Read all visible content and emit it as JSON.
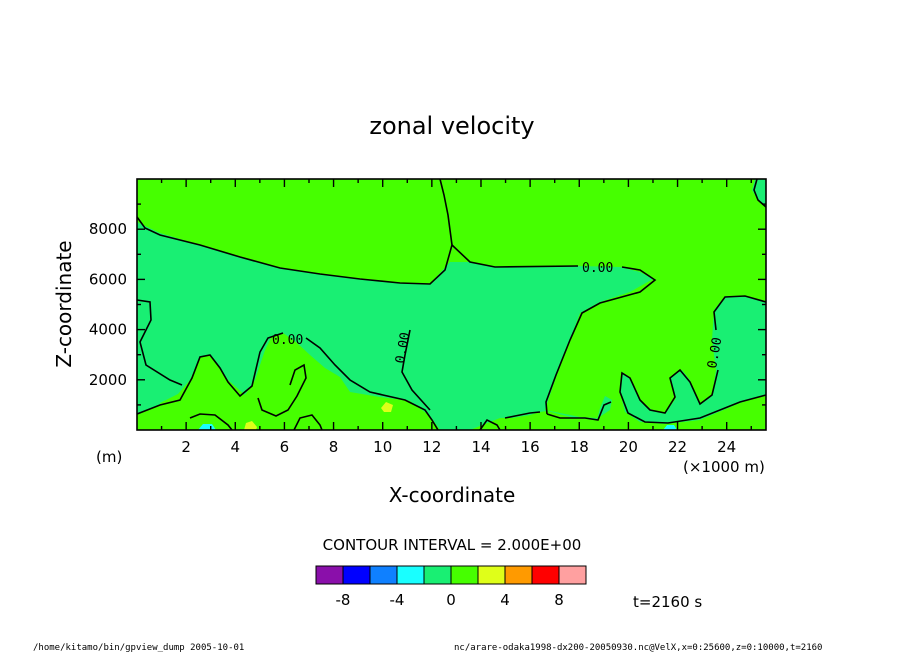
{
  "chart_data": {
    "type": "heatmap",
    "title": "zonal velocity",
    "xlabel": "X-coordinate",
    "ylabel": "Z-coordinate",
    "x_unit": "(×1000 m)",
    "y_unit": "(m)",
    "xlim": [
      0,
      25.6
    ],
    "ylim": [
      0,
      10000
    ],
    "x_ticks": [
      2,
      4,
      6,
      8,
      10,
      12,
      14,
      16,
      18,
      20,
      22,
      24
    ],
    "y_ticks": [
      2000,
      4000,
      6000,
      8000
    ],
    "contour_interval_label": "CONTOUR INTERVAL = 2.000E+00",
    "contour_labels": [
      "0.00",
      "0.00",
      "0.00",
      "0.00"
    ],
    "colorbar": {
      "colors": [
        "#8a0faa",
        "#0000ff",
        "#0f80ff",
        "#19ffff",
        "#19ef73",
        "#46ff00",
        "#dfff19",
        "#ff9a00",
        "#ff0000",
        "#ffa0a0"
      ],
      "tick_labels": [
        "-8",
        "-4",
        "0",
        "4",
        "8"
      ],
      "tick_values": [
        -8,
        -4,
        0,
        4,
        8
      ]
    },
    "time_label": "t=2160 s",
    "footer_left": "/home/kitamo/bin/gpview_dump  2005-10-01",
    "footer_right": "nc/arare-odaka1998-dx200-20050930.nc@VelX,x=0:25600,z=0:10000,t=2160"
  }
}
